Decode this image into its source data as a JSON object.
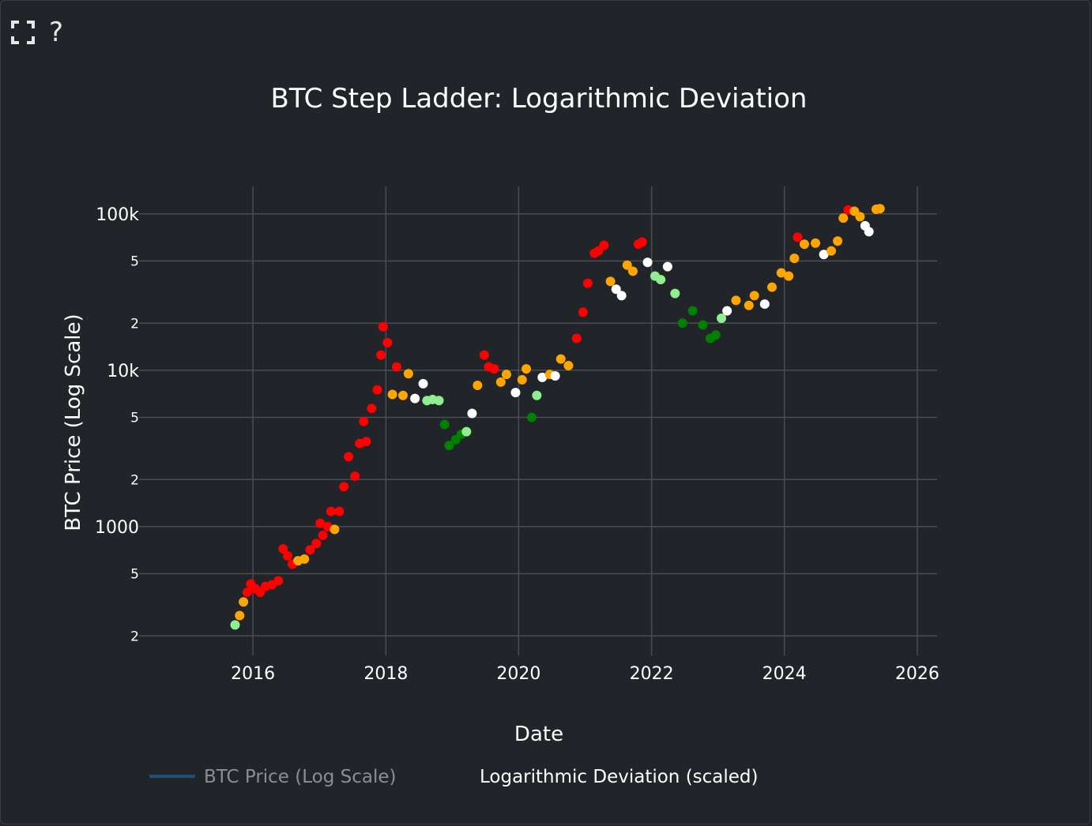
{
  "toolbar": {
    "fullscreen_icon": "fullscreen-icon",
    "help_label": "?"
  },
  "chart_data": {
    "type": "scatter",
    "title": "BTC Step Ladder: Logarithmic Deviation",
    "xlabel": "Date",
    "ylabel": "BTC Price (Log Scale)",
    "y_scale": "log",
    "xlim": [
      "2014-04-15",
      "2026-04-20"
    ],
    "ylim": [
      150,
      150000
    ],
    "x_ticks": [
      "2016",
      "2018",
      "2020",
      "2022",
      "2024",
      "2026"
    ],
    "y_major_ticks": [
      {
        "value": 1000,
        "label": "1000"
      },
      {
        "value": 10000,
        "label": "10k"
      },
      {
        "value": 100000,
        "label": "100k"
      }
    ],
    "y_minor_ticks": [
      {
        "value": 200,
        "label": "2"
      },
      {
        "value": 500,
        "label": "5"
      },
      {
        "value": 2000,
        "label": "2"
      },
      {
        "value": 5000,
        "label": "5"
      },
      {
        "value": 20000,
        "label": "2"
      },
      {
        "value": 50000,
        "label": "5"
      }
    ],
    "grid": true,
    "legend_position": "bottom",
    "colors": {
      "red": "#ff0000",
      "orange": "#ffa500",
      "white": "#ffffff",
      "lightgreen": "#90ee90",
      "green": "#008000",
      "line": "#1f4e79",
      "grid": "#4a4d52"
    },
    "series": [
      {
        "name": "BTC Price (Log Scale)",
        "kind": "line",
        "hidden": true
      },
      {
        "name": "Logarithmic Deviation (scaled)",
        "kind": "markers"
      }
    ],
    "points": [
      {
        "date": "2015-09-25",
        "price": 235,
        "color": "lightgreen"
      },
      {
        "date": "2015-10-20",
        "price": 270,
        "color": "orange"
      },
      {
        "date": "2015-11-10",
        "price": 330,
        "color": "orange"
      },
      {
        "date": "2015-12-01",
        "price": 380,
        "color": "red"
      },
      {
        "date": "2015-12-20",
        "price": 430,
        "color": "red"
      },
      {
        "date": "2016-01-15",
        "price": 400,
        "color": "red"
      },
      {
        "date": "2016-02-10",
        "price": 380,
        "color": "red"
      },
      {
        "date": "2016-03-10",
        "price": 415,
        "color": "red"
      },
      {
        "date": "2016-04-15",
        "price": 425,
        "color": "red"
      },
      {
        "date": "2016-05-20",
        "price": 450,
        "color": "red"
      },
      {
        "date": "2016-06-15",
        "price": 720,
        "color": "red"
      },
      {
        "date": "2016-07-10",
        "price": 650,
        "color": "red"
      },
      {
        "date": "2016-08-05",
        "price": 575,
        "color": "red"
      },
      {
        "date": "2016-09-05",
        "price": 605,
        "color": "orange"
      },
      {
        "date": "2016-10-10",
        "price": 620,
        "color": "orange"
      },
      {
        "date": "2016-11-10",
        "price": 710,
        "color": "red"
      },
      {
        "date": "2016-12-15",
        "price": 780,
        "color": "red"
      },
      {
        "date": "2017-01-05",
        "price": 1050,
        "color": "red"
      },
      {
        "date": "2017-01-20",
        "price": 880,
        "color": "red"
      },
      {
        "date": "2017-02-15",
        "price": 1000,
        "color": "red"
      },
      {
        "date": "2017-03-05",
        "price": 1250,
        "color": "red"
      },
      {
        "date": "2017-03-25",
        "price": 960,
        "color": "orange"
      },
      {
        "date": "2017-04-20",
        "price": 1250,
        "color": "red"
      },
      {
        "date": "2017-05-15",
        "price": 1800,
        "color": "red"
      },
      {
        "date": "2017-06-10",
        "price": 2800,
        "color": "red"
      },
      {
        "date": "2017-07-15",
        "price": 2100,
        "color": "red"
      },
      {
        "date": "2017-08-10",
        "price": 3400,
        "color": "red"
      },
      {
        "date": "2017-09-01",
        "price": 4700,
        "color": "red"
      },
      {
        "date": "2017-09-15",
        "price": 3500,
        "color": "red"
      },
      {
        "date": "2017-10-15",
        "price": 5700,
        "color": "red"
      },
      {
        "date": "2017-11-15",
        "price": 7500,
        "color": "red"
      },
      {
        "date": "2017-12-05",
        "price": 12500,
        "color": "red"
      },
      {
        "date": "2017-12-17",
        "price": 19000,
        "color": "red"
      },
      {
        "date": "2018-01-10",
        "price": 15000,
        "color": "red"
      },
      {
        "date": "2018-02-06",
        "price": 7000,
        "color": "orange"
      },
      {
        "date": "2018-03-01",
        "price": 10500,
        "color": "red"
      },
      {
        "date": "2018-04-05",
        "price": 6900,
        "color": "orange"
      },
      {
        "date": "2018-05-05",
        "price": 9500,
        "color": "orange"
      },
      {
        "date": "2018-06-10",
        "price": 6600,
        "color": "white"
      },
      {
        "date": "2018-07-25",
        "price": 8200,
        "color": "white"
      },
      {
        "date": "2018-08-15",
        "price": 6400,
        "color": "lightgreen"
      },
      {
        "date": "2018-09-15",
        "price": 6500,
        "color": "lightgreen"
      },
      {
        "date": "2018-10-20",
        "price": 6400,
        "color": "lightgreen"
      },
      {
        "date": "2018-11-20",
        "price": 4500,
        "color": "green"
      },
      {
        "date": "2018-12-15",
        "price": 3300,
        "color": "green"
      },
      {
        "date": "2019-01-20",
        "price": 3600,
        "color": "green"
      },
      {
        "date": "2019-02-20",
        "price": 3900,
        "color": "green"
      },
      {
        "date": "2019-03-20",
        "price": 4050,
        "color": "lightgreen"
      },
      {
        "date": "2019-04-20",
        "price": 5300,
        "color": "white"
      },
      {
        "date": "2019-05-20",
        "price": 8000,
        "color": "orange"
      },
      {
        "date": "2019-06-26",
        "price": 12500,
        "color": "red"
      },
      {
        "date": "2019-07-20",
        "price": 10500,
        "color": "red"
      },
      {
        "date": "2019-08-20",
        "price": 10200,
        "color": "red"
      },
      {
        "date": "2019-09-25",
        "price": 8400,
        "color": "orange"
      },
      {
        "date": "2019-10-26",
        "price": 9400,
        "color": "orange"
      },
      {
        "date": "2019-12-15",
        "price": 7200,
        "color": "white"
      },
      {
        "date": "2020-01-20",
        "price": 8700,
        "color": "orange"
      },
      {
        "date": "2020-02-12",
        "price": 10200,
        "color": "orange"
      },
      {
        "date": "2020-03-13",
        "price": 5000,
        "color": "green"
      },
      {
        "date": "2020-04-10",
        "price": 6900,
        "color": "lightgreen"
      },
      {
        "date": "2020-05-10",
        "price": 9000,
        "color": "white"
      },
      {
        "date": "2020-06-20",
        "price": 9400,
        "color": "orange"
      },
      {
        "date": "2020-07-20",
        "price": 9200,
        "color": "white"
      },
      {
        "date": "2020-08-20",
        "price": 11800,
        "color": "orange"
      },
      {
        "date": "2020-10-01",
        "price": 10700,
        "color": "orange"
      },
      {
        "date": "2020-11-15",
        "price": 16000,
        "color": "red"
      },
      {
        "date": "2020-12-20",
        "price": 23500,
        "color": "red"
      },
      {
        "date": "2021-01-15",
        "price": 36000,
        "color": "red"
      },
      {
        "date": "2021-02-21",
        "price": 56000,
        "color": "red"
      },
      {
        "date": "2021-03-15",
        "price": 58000,
        "color": "red"
      },
      {
        "date": "2021-04-14",
        "price": 63000,
        "color": "red"
      },
      {
        "date": "2021-05-20",
        "price": 37000,
        "color": "orange"
      },
      {
        "date": "2021-06-20",
        "price": 33000,
        "color": "white"
      },
      {
        "date": "2021-07-20",
        "price": 30000,
        "color": "white"
      },
      {
        "date": "2021-08-20",
        "price": 47000,
        "color": "orange"
      },
      {
        "date": "2021-09-20",
        "price": 43000,
        "color": "orange"
      },
      {
        "date": "2021-10-20",
        "price": 64000,
        "color": "red"
      },
      {
        "date": "2021-11-10",
        "price": 66000,
        "color": "red"
      },
      {
        "date": "2021-12-10",
        "price": 49000,
        "color": "white"
      },
      {
        "date": "2022-01-20",
        "price": 40000,
        "color": "lightgreen"
      },
      {
        "date": "2022-02-20",
        "price": 38000,
        "color": "lightgreen"
      },
      {
        "date": "2022-03-30",
        "price": 46000,
        "color": "white"
      },
      {
        "date": "2022-05-10",
        "price": 31000,
        "color": "lightgreen"
      },
      {
        "date": "2022-06-20",
        "price": 20000,
        "color": "green"
      },
      {
        "date": "2022-08-15",
        "price": 24000,
        "color": "green"
      },
      {
        "date": "2022-10-10",
        "price": 19500,
        "color": "green"
      },
      {
        "date": "2022-11-20",
        "price": 16000,
        "color": "green"
      },
      {
        "date": "2022-12-20",
        "price": 16800,
        "color": "green"
      },
      {
        "date": "2023-01-20",
        "price": 21500,
        "color": "lightgreen"
      },
      {
        "date": "2023-02-20",
        "price": 24000,
        "color": "white"
      },
      {
        "date": "2023-04-10",
        "price": 28000,
        "color": "orange"
      },
      {
        "date": "2023-06-20",
        "price": 26000,
        "color": "orange"
      },
      {
        "date": "2023-07-20",
        "price": 30000,
        "color": "orange"
      },
      {
        "date": "2023-09-15",
        "price": 26500,
        "color": "white"
      },
      {
        "date": "2023-10-25",
        "price": 34000,
        "color": "orange"
      },
      {
        "date": "2023-12-15",
        "price": 42000,
        "color": "orange"
      },
      {
        "date": "2024-01-25",
        "price": 40000,
        "color": "orange"
      },
      {
        "date": "2024-02-25",
        "price": 52000,
        "color": "orange"
      },
      {
        "date": "2024-03-14",
        "price": 71000,
        "color": "red"
      },
      {
        "date": "2024-04-20",
        "price": 64000,
        "color": "orange"
      },
      {
        "date": "2024-06-20",
        "price": 65000,
        "color": "orange"
      },
      {
        "date": "2024-08-05",
        "price": 55000,
        "color": "white"
      },
      {
        "date": "2024-09-15",
        "price": 58000,
        "color": "orange"
      },
      {
        "date": "2024-10-20",
        "price": 67000,
        "color": "orange"
      },
      {
        "date": "2024-11-20",
        "price": 94000,
        "color": "orange"
      },
      {
        "date": "2024-12-17",
        "price": 106000,
        "color": "red"
      },
      {
        "date": "2025-01-20",
        "price": 104000,
        "color": "orange"
      },
      {
        "date": "2025-02-20",
        "price": 96000,
        "color": "orange"
      },
      {
        "date": "2025-03-20",
        "price": 84000,
        "color": "white"
      },
      {
        "date": "2025-04-10",
        "price": 77000,
        "color": "white"
      },
      {
        "date": "2025-05-20",
        "price": 107000,
        "color": "orange"
      },
      {
        "date": "2025-06-10",
        "price": 108000,
        "color": "orange"
      }
    ]
  }
}
